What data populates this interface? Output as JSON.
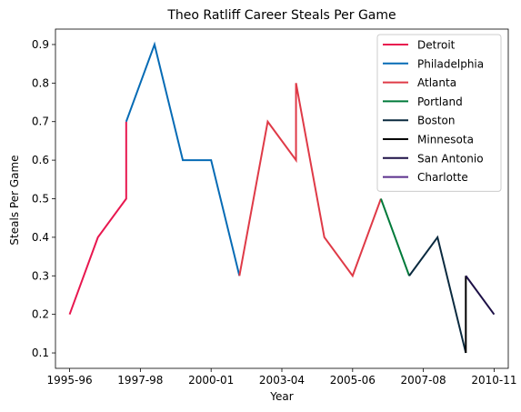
{
  "chart_data": {
    "type": "line",
    "title": "Theo Ratliff Career Steals Per Game",
    "xlabel": "Year",
    "ylabel": "Steals Per Game",
    "xlim": [
      -0.5,
      15.5
    ],
    "ylim": [
      0.06,
      0.94
    ],
    "x_ticks": [
      {
        "pos": 0,
        "label": "1995-96"
      },
      {
        "pos": 2.5,
        "label": "1997-98"
      },
      {
        "pos": 5,
        "label": "2000-01"
      },
      {
        "pos": 7.5,
        "label": "2003-04"
      },
      {
        "pos": 10,
        "label": "2005-06"
      },
      {
        "pos": 12.5,
        "label": "2007-08"
      },
      {
        "pos": 15,
        "label": "2010-11"
      }
    ],
    "y_ticks": [
      0.1,
      0.2,
      0.3,
      0.4,
      0.5,
      0.6,
      0.7,
      0.8,
      0.9
    ],
    "legend_position": "top-right",
    "grid": false,
    "series": [
      {
        "name": "Detroit",
        "color": "#e8174f",
        "points": [
          [
            0,
            0.2
          ],
          [
            1,
            0.4
          ],
          [
            2,
            0.5
          ],
          [
            2,
            0.7
          ]
        ]
      },
      {
        "name": "Philadelphia",
        "color": "#066bb5",
        "points": [
          [
            2,
            0.7
          ],
          [
            3,
            0.9
          ],
          [
            4,
            0.6
          ],
          [
            5,
            0.6
          ],
          [
            6,
            0.3
          ]
        ]
      },
      {
        "name": "Atlanta",
        "color": "#df3a47",
        "points": [
          [
            6,
            0.3
          ],
          [
            7,
            0.7
          ],
          [
            8,
            0.6
          ],
          [
            8,
            0.8
          ],
          [
            9,
            0.4
          ],
          [
            10,
            0.3
          ],
          [
            11,
            0.5
          ]
        ]
      },
      {
        "name": "Portland",
        "color": "#007a3a",
        "points": [
          [
            11,
            0.5
          ],
          [
            12,
            0.3
          ]
        ]
      },
      {
        "name": "Boston",
        "color": "#0a2a3f",
        "points": [
          [
            12,
            0.3
          ],
          [
            13,
            0.4
          ],
          [
            14,
            0.1
          ]
        ]
      },
      {
        "name": "Minnesota",
        "color": "#000000",
        "points": [
          [
            14,
            0.1
          ],
          [
            14,
            0.3
          ]
        ]
      },
      {
        "name": "San Antonio",
        "color": "#1d1046",
        "points": [
          [
            14,
            0.3
          ],
          [
            15,
            0.2
          ]
        ]
      },
      {
        "name": "Charlotte",
        "color": "#5a2f8c",
        "points": []
      }
    ]
  }
}
